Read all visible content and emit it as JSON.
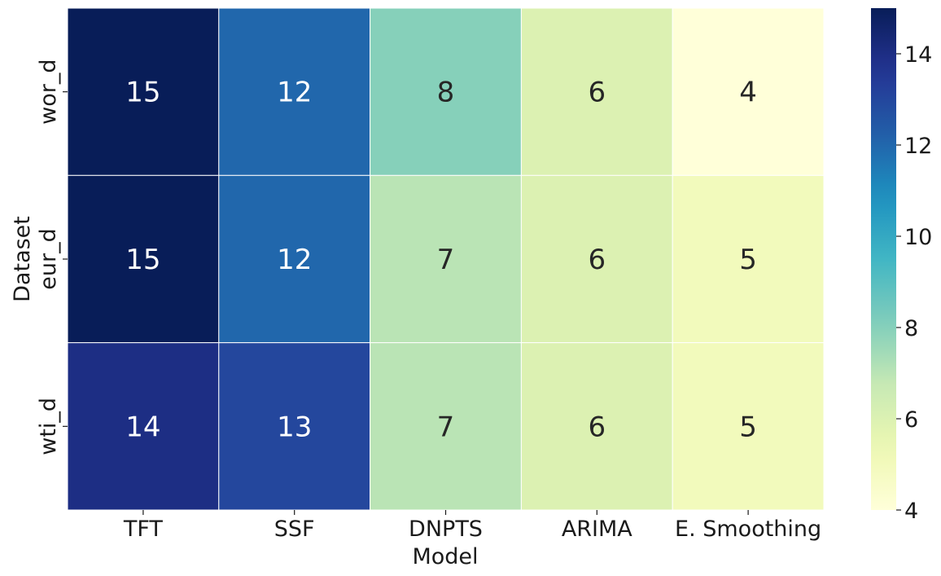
{
  "chart_data": {
    "type": "heatmap",
    "title": "",
    "xlabel": "Model",
    "ylabel": "Dataset",
    "x_categories": [
      "TFT",
      "SSF",
      "DNPTS",
      "ARIMA",
      "E. Smoothing"
    ],
    "y_categories": [
      "wor_d",
      "eur_d",
      "wti_d"
    ],
    "values": [
      [
        15,
        12,
        8,
        6,
        4
      ],
      [
        15,
        12,
        7,
        6,
        5
      ],
      [
        14,
        13,
        7,
        6,
        5
      ]
    ],
    "value_range": [
      4,
      15
    ],
    "colormap": "YlGnBu",
    "colorbar_ticks": [
      4,
      6,
      8,
      10,
      12,
      14
    ],
    "annotations": true
  }
}
